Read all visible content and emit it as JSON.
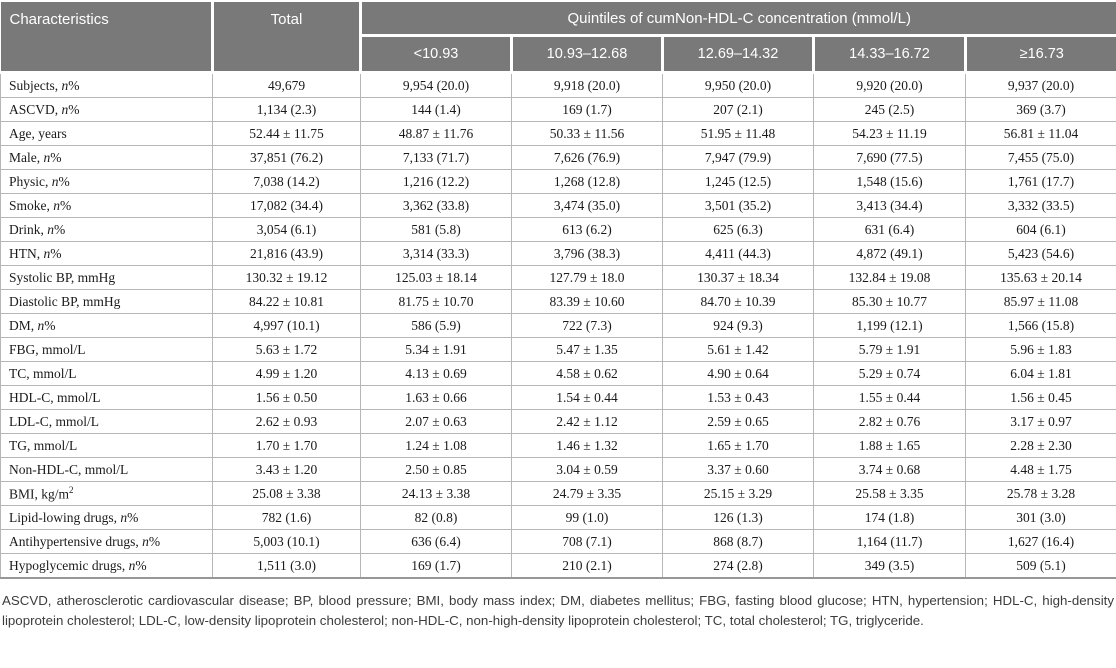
{
  "table": {
    "header": {
      "characteristics": "Characteristics",
      "total": "Total",
      "quintiles_title": "Quintiles of cumNon-HDL-C concentration (mmol/L)",
      "quintile_cols": [
        "<10.93",
        "10.93–12.68",
        "12.69–14.32",
        "14.33–16.72",
        "≥16.73"
      ]
    },
    "rows": [
      {
        "pre": "Subjects, ",
        "it": "n",
        "post": "%",
        "sup": "",
        "cells": [
          "49,679",
          "9,954 (20.0)",
          "9,918 (20.0)",
          "9,950 (20.0)",
          "9,920 (20.0)",
          "9,937 (20.0)"
        ]
      },
      {
        "pre": "ASCVD, ",
        "it": "n",
        "post": "%",
        "sup": "",
        "cells": [
          "1,134 (2.3)",
          "144 (1.4)",
          "169 (1.7)",
          "207 (2.1)",
          "245 (2.5)",
          "369 (3.7)"
        ]
      },
      {
        "pre": "Age, years",
        "it": "",
        "post": "",
        "sup": "",
        "cells": [
          "52.44 ± 11.75",
          "48.87 ± 11.76",
          "50.33 ± 11.56",
          "51.95 ± 11.48",
          "54.23 ± 11.19",
          "56.81 ± 11.04"
        ]
      },
      {
        "pre": "Male, ",
        "it": "n",
        "post": "%",
        "sup": "",
        "cells": [
          "37,851 (76.2)",
          "7,133 (71.7)",
          "7,626 (76.9)",
          "7,947 (79.9)",
          "7,690 (77.5)",
          "7,455 (75.0)"
        ]
      },
      {
        "pre": "Physic, ",
        "it": "n",
        "post": "%",
        "sup": "",
        "cells": [
          "7,038 (14.2)",
          "1,216 (12.2)",
          "1,268 (12.8)",
          "1,245 (12.5)",
          "1,548 (15.6)",
          "1,761 (17.7)"
        ]
      },
      {
        "pre": "Smoke, ",
        "it": "n",
        "post": "%",
        "sup": "",
        "cells": [
          "17,082 (34.4)",
          "3,362 (33.8)",
          "3,474 (35.0)",
          "3,501 (35.2)",
          "3,413 (34.4)",
          "3,332 (33.5)"
        ]
      },
      {
        "pre": "Drink, ",
        "it": "n",
        "post": "%",
        "sup": "",
        "cells": [
          "3,054 (6.1)",
          "581 (5.8)",
          "613 (6.2)",
          "625 (6.3)",
          "631 (6.4)",
          "604 (6.1)"
        ]
      },
      {
        "pre": "HTN, ",
        "it": "n",
        "post": "%",
        "sup": "",
        "cells": [
          "21,816 (43.9)",
          "3,314 (33.3)",
          "3,796 (38.3)",
          "4,411 (44.3)",
          "4,872 (49.1)",
          "5,423 (54.6)"
        ]
      },
      {
        "pre": "Systolic BP, mmHg",
        "it": "",
        "post": "",
        "sup": "",
        "cells": [
          "130.32 ± 19.12",
          "125.03 ± 18.14",
          "127.79 ± 18.0",
          "130.37 ± 18.34",
          "132.84 ± 19.08",
          "135.63 ± 20.14"
        ]
      },
      {
        "pre": "Diastolic BP, mmHg",
        "it": "",
        "post": "",
        "sup": "",
        "cells": [
          "84.22 ± 10.81",
          "81.75 ± 10.70",
          "83.39 ± 10.60",
          "84.70 ± 10.39",
          "85.30 ± 10.77",
          "85.97 ± 11.08"
        ]
      },
      {
        "pre": "DM, ",
        "it": "n",
        "post": "%",
        "sup": "",
        "cells": [
          "4,997 (10.1)",
          "586 (5.9)",
          "722 (7.3)",
          "924 (9.3)",
          "1,199 (12.1)",
          "1,566 (15.8)"
        ]
      },
      {
        "pre": "FBG, mmol/L",
        "it": "",
        "post": "",
        "sup": "",
        "cells": [
          "5.63 ± 1.72",
          "5.34 ± 1.91",
          "5.47 ± 1.35",
          "5.61 ± 1.42",
          "5.79 ± 1.91",
          "5.96 ± 1.83"
        ]
      },
      {
        "pre": "TC, mmol/L",
        "it": "",
        "post": "",
        "sup": "",
        "cells": [
          "4.99 ± 1.20",
          "4.13 ± 0.69",
          "4.58 ± 0.62",
          "4.90 ± 0.64",
          "5.29 ± 0.74",
          "6.04 ± 1.81"
        ]
      },
      {
        "pre": "HDL-C, mmol/L",
        "it": "",
        "post": "",
        "sup": "",
        "cells": [
          "1.56 ± 0.50",
          "1.63 ± 0.66",
          "1.54 ± 0.44",
          "1.53 ± 0.43",
          "1.55 ± 0.44",
          "1.56 ± 0.45"
        ]
      },
      {
        "pre": "LDL-C, mmol/L",
        "it": "",
        "post": "",
        "sup": "",
        "cells": [
          "2.62 ± 0.93",
          "2.07 ± 0.63",
          "2.42 ± 1.12",
          "2.59 ± 0.65",
          "2.82 ± 0.76",
          "3.17 ± 0.97"
        ]
      },
      {
        "pre": "TG, mmol/L",
        "it": "",
        "post": "",
        "sup": "",
        "cells": [
          "1.70 ± 1.70",
          "1.24 ± 1.08",
          "1.46 ± 1.32",
          "1.65 ± 1.70",
          "1.88 ± 1.65",
          "2.28 ± 2.30"
        ]
      },
      {
        "pre": "Non-HDL-C, mmol/L",
        "it": "",
        "post": "",
        "sup": "",
        "cells": [
          "3.43 ± 1.20",
          "2.50 ± 0.85",
          "3.04 ± 0.59",
          "3.37 ± 0.60",
          "3.74 ± 0.68",
          "4.48 ± 1.75"
        ]
      },
      {
        "pre": "BMI, kg/m",
        "it": "",
        "post": "",
        "sup": "2",
        "cells": [
          "25.08 ± 3.38",
          "24.13 ± 3.38",
          "24.79 ± 3.35",
          "25.15 ± 3.29",
          "25.58 ± 3.35",
          "25.78 ± 3.28"
        ]
      },
      {
        "pre": "Lipid-lowing drugs, ",
        "it": "n",
        "post": "%",
        "sup": "",
        "cells": [
          "782 (1.6)",
          "82 (0.8)",
          "99 (1.0)",
          "126 (1.3)",
          "174 (1.8)",
          "301 (3.0)"
        ]
      },
      {
        "pre": "Antihypertensive drugs, ",
        "it": "n",
        "post": "%",
        "sup": "",
        "cells": [
          "5,003 (10.1)",
          "636 (6.4)",
          "708 (7.1)",
          "868 (8.7)",
          "1,164 (11.7)",
          "1,627 (16.4)"
        ]
      },
      {
        "pre": "Hypoglycemic drugs, ",
        "it": "n",
        "post": "%",
        "sup": "",
        "cells": [
          "1,511 (3.0)",
          "169 (1.7)",
          "210 (2.1)",
          "274 (2.8)",
          "349 (3.5)",
          "509 (5.1)"
        ]
      }
    ]
  },
  "footnote": "ASCVD, atherosclerotic cardiovascular disease; BP, blood pressure; BMI, body mass index; DM, diabetes mellitus; FBG, fasting blood glucose; HTN, hypertension; HDL-C, high-density lipoprotein cholesterol; LDL-C, low-density lipoprotein cholesterol; non-HDL-C, non-high-density lipoprotein cholesterol; TC, total cholesterol; TG, triglyceride.",
  "colors": {
    "header_bg": "#797979",
    "header_text": "#ffffff",
    "body_border": "#b6b6b6",
    "body_text": "#1a1a1a"
  }
}
